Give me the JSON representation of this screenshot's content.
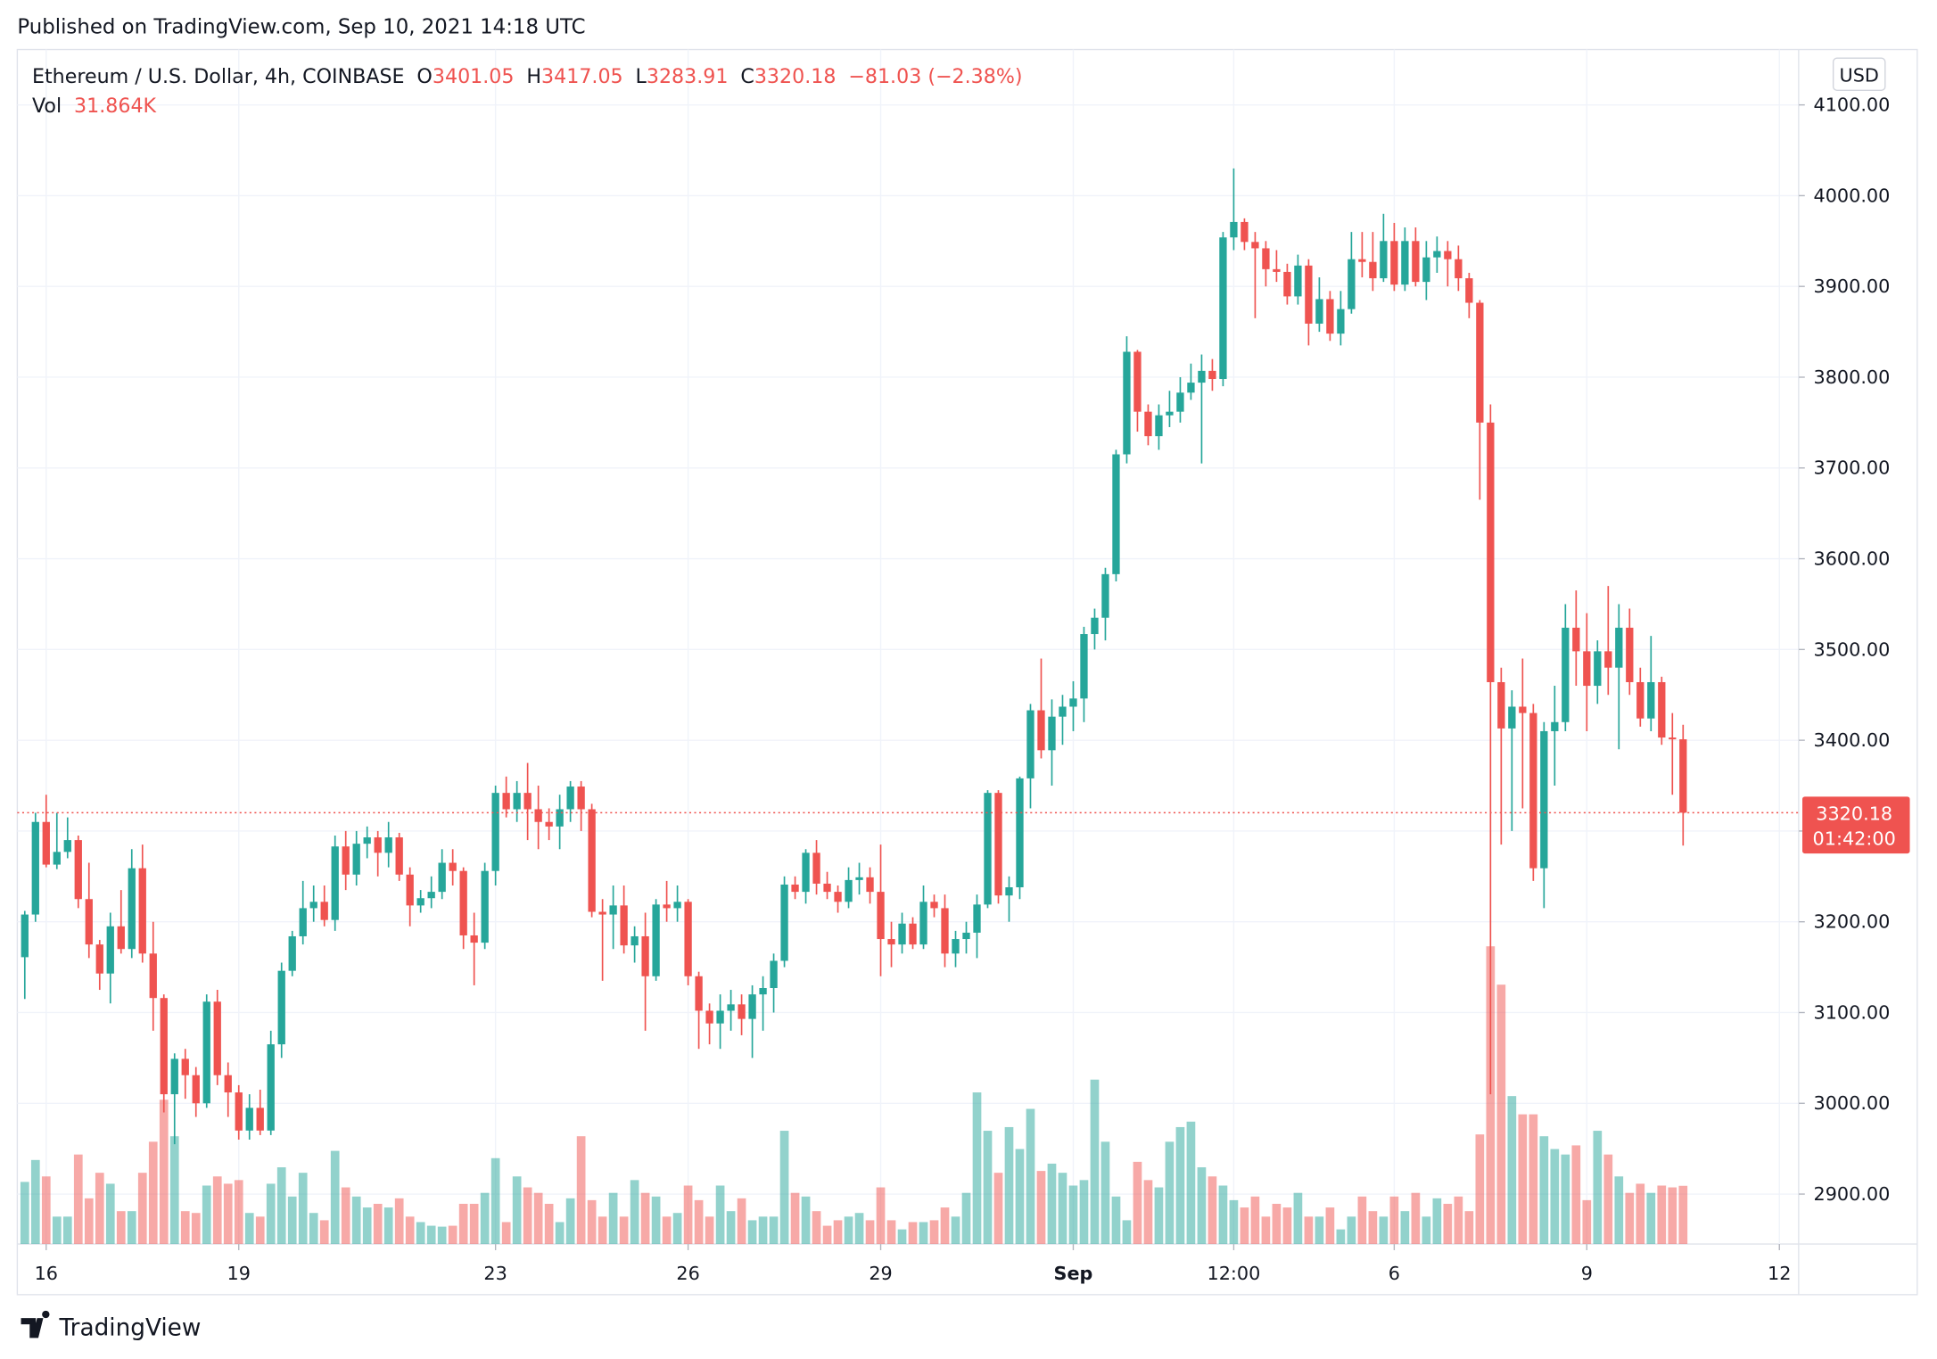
{
  "header": {
    "published": "Published on TradingView.com, Sep 10, 2021 14:18 UTC"
  },
  "footer": {
    "brand": "TradingView"
  },
  "chart_data": {
    "type": "candlestick",
    "title": "Ethereum / U.S. Dollar, 4h, COINBASE",
    "ohlc_letters": [
      "O",
      "H",
      "L",
      "C"
    ],
    "change_text": "−81.03 (−2.38%)",
    "volume_title": "Vol",
    "volume_value_label": "31.864K",
    "currency": "USD",
    "countdown": "01:42:00",
    "up_color": "#26a69a",
    "down_color": "#ef5350",
    "grid": true,
    "xlim": [
      -0.7,
      165.8
    ],
    "xticks": [
      {
        "value": 2,
        "label": "16"
      },
      {
        "value": 20,
        "label": "19"
      },
      {
        "value": 44,
        "label": "23"
      },
      {
        "value": 62,
        "label": "26"
      },
      {
        "value": 80,
        "label": "29"
      },
      {
        "value": 98,
        "label": "Sep"
      },
      {
        "value": 113,
        "label": "12:00"
      },
      {
        "value": 128,
        "label": "6"
      },
      {
        "value": 146,
        "label": "9"
      },
      {
        "value": 164,
        "label": "12"
      }
    ],
    "ylim": [
      2845,
      4161
    ],
    "yticks": [
      {
        "value": 2900,
        "label": "2900.00"
      },
      {
        "value": 3000,
        "label": "3000.00"
      },
      {
        "value": 3100,
        "label": "3100.00"
      },
      {
        "value": 3200,
        "label": "3200.00"
      },
      {
        "value": 3300,
        "label": "3300.00"
      },
      {
        "value": 3400,
        "label": "3400.00"
      },
      {
        "value": 3500,
        "label": "3500.00"
      },
      {
        "value": 3600,
        "label": "3600.00"
      },
      {
        "value": 3700,
        "label": "3700.00"
      },
      {
        "value": 3800,
        "label": "3800.00"
      },
      {
        "value": 3900,
        "label": "3900.00"
      },
      {
        "value": 4000,
        "label": "4000.00"
      },
      {
        "value": 4100,
        "label": "4100.00"
      }
    ],
    "open": [
      3161,
      3208,
      3310,
      3263,
      3277,
      3290,
      3225,
      3175,
      3143,
      3195,
      3170,
      3259,
      3165,
      3116,
      3010,
      3049,
      3031,
      3000,
      3112,
      3031,
      3012,
      2970,
      2995,
      2970,
      3065,
      3146,
      3184,
      3215,
      3222,
      3202,
      3283,
      3252,
      3286,
      3293,
      3276,
      3293,
      3252,
      3218,
      3226,
      3233,
      3265,
      3256,
      3185,
      3177,
      3256,
      3342,
      3324,
      3342,
      3324,
      3310,
      3305,
      3324,
      3349,
      3324,
      3211,
      3208,
      3218,
      3174,
      3184,
      3140,
      3219,
      3215,
      3222,
      3140,
      3102,
      3088,
      3102,
      3109,
      3093,
      3120,
      3127,
      3157,
      3241,
      3233,
      3276,
      3242,
      3233,
      3222,
      3246,
      3249,
      3233,
      3181,
      3175,
      3198,
      3175,
      3222,
      3215,
      3165,
      3181,
      3188,
      3219,
      3342,
      3229,
      3238,
      3358,
      3433,
      3389,
      3426,
      3437,
      3446,
      3517,
      3535,
      3583,
      3715,
      3828,
      3762,
      3735,
      3758,
      3762,
      3783,
      3794,
      3807,
      3798,
      3954,
      3971,
      3949,
      3942,
      3919,
      3916,
      3889,
      3923,
      3859,
      3886,
      3848,
      3875,
      3930,
      3927,
      3909,
      3950,
      3902,
      3950,
      3905,
      3932,
      3939,
      3930,
      3909,
      3882,
      3750,
      3464,
      3413,
      3437,
      3430,
      3259,
      3410,
      3420,
      3524,
      3498,
      3460,
      3498,
      3480,
      3524,
      3464,
      3424,
      3464,
      3403,
      3401.05
    ],
    "high": [
      3212,
      3320,
      3340,
      3320,
      3315,
      3295,
      3265,
      3180,
      3210,
      3235,
      3280,
      3285,
      3200,
      3120,
      3055,
      3060,
      3040,
      3120,
      3125,
      3045,
      3020,
      3010,
      3015,
      3080,
      3155,
      3190,
      3245,
      3240,
      3240,
      3295,
      3300,
      3300,
      3305,
      3300,
      3310,
      3298,
      3260,
      3235,
      3250,
      3280,
      3280,
      3260,
      3210,
      3265,
      3350,
      3360,
      3355,
      3375,
      3350,
      3325,
      3340,
      3355,
      3355,
      3330,
      3225,
      3240,
      3240,
      3195,
      3210,
      3225,
      3245,
      3240,
      3225,
      3145,
      3110,
      3120,
      3125,
      3120,
      3130,
      3140,
      3165,
      3250,
      3250,
      3280,
      3290,
      3255,
      3240,
      3260,
      3265,
      3260,
      3285,
      3200,
      3210,
      3205,
      3240,
      3230,
      3230,
      3190,
      3200,
      3230,
      3345,
      3345,
      3250,
      3360,
      3440,
      3490,
      3445,
      3450,
      3465,
      3525,
      3545,
      3590,
      3720,
      3845,
      3830,
      3770,
      3770,
      3785,
      3800,
      3815,
      3825,
      3820,
      3960,
      4030,
      3975,
      3960,
      3950,
      3940,
      3925,
      3935,
      3930,
      3910,
      3895,
      3895,
      3960,
      3960,
      3960,
      3980,
      3970,
      3965,
      3965,
      3950,
      3955,
      3950,
      3945,
      3915,
      3885,
      3770,
      3480,
      3455,
      3490,
      3440,
      3420,
      3460,
      3550,
      3565,
      3540,
      3510,
      3570,
      3550,
      3545,
      3480,
      3515,
      3470,
      3430,
      3417.05
    ],
    "low": [
      3115,
      3200,
      3260,
      3258,
      3270,
      3215,
      3160,
      3125,
      3110,
      3165,
      3160,
      3155,
      3080,
      2990,
      2955,
      3005,
      2985,
      2995,
      3020,
      2985,
      2960,
      2960,
      2965,
      2965,
      3050,
      3140,
      3175,
      3200,
      3195,
      3190,
      3235,
      3240,
      3270,
      3250,
      3260,
      3245,
      3195,
      3210,
      3215,
      3225,
      3240,
      3170,
      3130,
      3170,
      3240,
      3315,
      3310,
      3290,
      3280,
      3290,
      3280,
      3310,
      3300,
      3205,
      3135,
      3170,
      3165,
      3155,
      3080,
      3135,
      3200,
      3200,
      3130,
      3060,
      3065,
      3060,
      3080,
      3075,
      3050,
      3080,
      3100,
      3150,
      3225,
      3220,
      3230,
      3225,
      3210,
      3215,
      3230,
      3220,
      3140,
      3150,
      3165,
      3170,
      3170,
      3205,
      3150,
      3150,
      3165,
      3160,
      3215,
      3220,
      3200,
      3225,
      3325,
      3380,
      3350,
      3395,
      3410,
      3420,
      3500,
      3510,
      3575,
      3705,
      3740,
      3725,
      3720,
      3745,
      3750,
      3775,
      3705,
      3785,
      3790,
      3940,
      3940,
      3865,
      3900,
      3905,
      3880,
      3880,
      3835,
      3850,
      3840,
      3835,
      3870,
      3910,
      3895,
      3905,
      3895,
      3895,
      3900,
      3885,
      3915,
      3900,
      3895,
      3865,
      3665,
      3010,
      3285,
      3300,
      3325,
      3245,
      3215,
      3350,
      3410,
      3460,
      3410,
      3440,
      3450,
      3390,
      3450,
      3415,
      3410,
      3395,
      3340,
      3283.91
    ],
    "close": [
      3208,
      3310,
      3263,
      3277,
      3290,
      3225,
      3175,
      3143,
      3195,
      3170,
      3259,
      3165,
      3116,
      3010,
      3049,
      3031,
      3000,
      3112,
      3031,
      3012,
      2970,
      2995,
      2970,
      3065,
      3146,
      3184,
      3215,
      3222,
      3202,
      3283,
      3252,
      3286,
      3293,
      3276,
      3293,
      3252,
      3218,
      3226,
      3233,
      3265,
      3256,
      3185,
      3177,
      3256,
      3342,
      3324,
      3342,
      3324,
      3310,
      3305,
      3324,
      3349,
      3324,
      3211,
      3208,
      3218,
      3174,
      3184,
      3140,
      3219,
      3215,
      3222,
      3140,
      3102,
      3088,
      3102,
      3109,
      3093,
      3120,
      3127,
      3157,
      3241,
      3233,
      3276,
      3242,
      3233,
      3222,
      3246,
      3249,
      3233,
      3181,
      3175,
      3198,
      3175,
      3222,
      3215,
      3165,
      3181,
      3188,
      3219,
      3342,
      3229,
      3238,
      3358,
      3433,
      3389,
      3426,
      3437,
      3446,
      3517,
      3535,
      3583,
      3715,
      3828,
      3762,
      3735,
      3758,
      3762,
      3783,
      3794,
      3807,
      3798,
      3954,
      3971,
      3949,
      3942,
      3919,
      3916,
      3889,
      3923,
      3859,
      3886,
      3848,
      3875,
      3930,
      3927,
      3909,
      3950,
      3902,
      3950,
      3905,
      3932,
      3939,
      3930,
      3909,
      3882,
      3750,
      3464,
      3413,
      3437,
      3430,
      3259,
      3410,
      3420,
      3524,
      3498,
      3460,
      3498,
      3480,
      3524,
      3464,
      3424,
      3464,
      3403,
      3401,
      3320.18
    ],
    "volume": [
      34,
      46,
      37,
      15,
      15,
      49,
      25,
      39,
      33,
      18,
      18,
      39,
      56,
      79,
      59,
      18,
      17,
      32,
      37,
      33,
      35,
      17,
      15,
      33,
      42,
      26,
      39,
      17,
      13,
      51,
      31,
      26,
      20,
      22,
      20,
      25,
      15,
      12,
      10,
      9.5,
      10,
      22,
      22,
      28,
      47,
      12,
      37,
      31,
      28,
      22,
      12,
      25,
      59,
      24,
      15,
      28,
      15,
      35,
      28,
      26,
      15,
      17,
      32,
      24,
      15,
      32,
      18,
      25,
      13,
      15,
      15,
      62,
      28,
      26,
      18,
      10,
      13,
      15,
      17,
      13,
      31,
      13,
      8,
      12,
      12,
      13,
      20,
      15,
      28,
      83,
      62,
      39,
      64,
      52,
      74,
      40,
      44,
      39,
      32,
      35,
      90,
      56,
      26,
      13,
      45,
      35,
      31,
      56,
      64,
      67,
      42,
      37,
      32,
      24,
      20,
      26,
      15,
      22,
      20,
      28,
      15,
      15,
      20,
      8,
      15,
      26,
      18,
      15,
      26,
      18,
      28,
      15,
      25,
      22,
      26,
      18,
      60,
      163,
      142,
      81,
      71,
      71,
      59,
      52,
      49,
      54,
      24,
      62,
      49,
      37,
      28,
      33,
      28,
      32,
      31,
      31.864
    ]
  }
}
